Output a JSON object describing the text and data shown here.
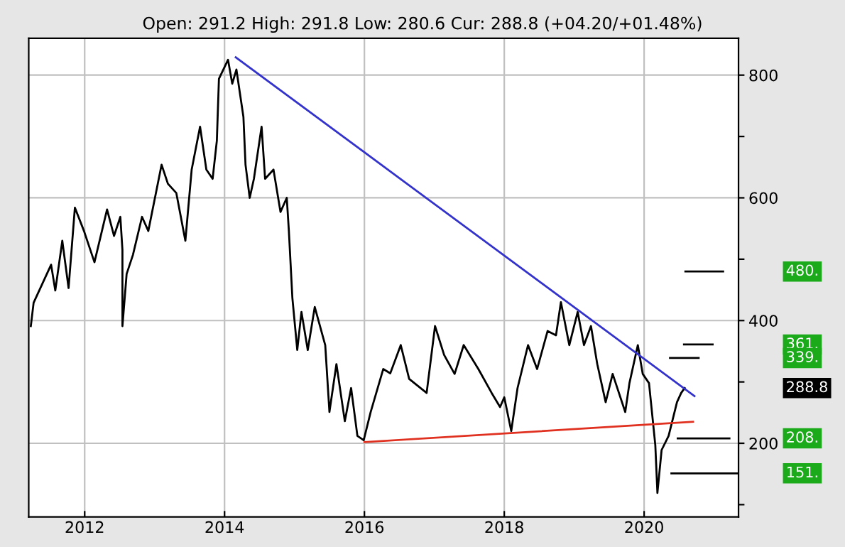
{
  "chart_data": {
    "type": "line",
    "title": "Open: 291.2 High: 291.8 Low: 280.6 Cur: 288.8 (+04.20/+01.48%)",
    "xlim": [
      2011.2,
      2021.35
    ],
    "xticks": [
      2012,
      2014,
      2016,
      2018,
      2020
    ],
    "ylim": [
      80,
      860
    ],
    "yticks": [
      {
        "value": 100,
        "label": null
      },
      200,
      {
        "value": 300,
        "label": null
      },
      400,
      {
        "value": 500,
        "label": null
      },
      600,
      {
        "value": 700,
        "label": null
      },
      800
    ],
    "grid": true,
    "marker": "none",
    "line_style": "solid",
    "series": [
      {
        "color": "#000000",
        "x": [
          2011.23,
          2011.27,
          2011.52,
          2011.58,
          2011.68,
          2011.77,
          2011.86,
          2011.99,
          2012.14,
          2012.32,
          2012.42,
          2012.51,
          2012.54,
          2012.54,
          2012.6,
          2012.69,
          2012.82,
          2012.91,
          2013.1,
          2013.19,
          2013.31,
          2013.44,
          2013.53,
          2013.65,
          2013.74,
          2013.83,
          2013.89,
          2013.92,
          2014.05,
          2014.11,
          2014.17,
          2014.27,
          2014.3,
          2014.36,
          2014.42,
          2014.53,
          2014.58,
          2014.7,
          2014.8,
          2014.89,
          2014.92,
          2014.97,
          2015.04,
          2015.1,
          2015.19,
          2015.29,
          2015.44,
          2015.5,
          2015.6,
          2015.72,
          2015.81,
          2015.9,
          2015.99,
          2016.09,
          2016.27,
          2016.37,
          2016.52,
          2016.64,
          2016.89,
          2017.01,
          2017.14,
          2017.29,
          2017.42,
          2017.63,
          2017.82,
          2017.94,
          2018.0,
          2018.1,
          2018.19,
          2018.34,
          2018.47,
          2018.62,
          2018.74,
          2018.81,
          2018.93,
          2019.05,
          2019.14,
          2019.24,
          2019.33,
          2019.45,
          2019.55,
          2019.73,
          2019.79,
          2019.91,
          2019.98,
          2020.07,
          2020.16,
          2020.19,
          2020.25,
          2020.35,
          2020.47,
          2020.53,
          2020.58
        ],
        "values": [
          391,
          429,
          491,
          449,
          530,
          453,
          584,
          546,
          495,
          581,
          538,
          569,
          515,
          391,
          476,
          507,
          569,
          546,
          654,
          623,
          608,
          530,
          646,
          716,
          646,
          631,
          693,
          794,
          825,
          786,
          809,
          732,
          654,
          600,
          631,
          716,
          631,
          646,
          577,
          600,
          546,
          437,
          352,
          414,
          352,
          422,
          360,
          251,
          329,
          236,
          290,
          212,
          205,
          251,
          321,
          314,
          360,
          305,
          282,
          391,
          344,
          313,
          360,
          321,
          282,
          259,
          275,
          220,
          290,
          360,
          321,
          383,
          376,
          430,
          360,
          414,
          360,
          391,
          329,
          267,
          313,
          251,
          298,
          360,
          313,
          298,
          197,
          119,
          189,
          212,
          267,
          282,
          290
        ]
      },
      {
        "color": "#3333cc",
        "x": [
          2014.16,
          2020.72
        ],
        "values": [
          829,
          277
        ]
      },
      {
        "color": "#e03020",
        "x": [
          2016.0,
          2020.7
        ],
        "values": [
          202,
          235
        ]
      },
      {
        "color": "#000000",
        "x": [
          2020.59,
          2021.13
        ],
        "values": [
          480,
          480
        ]
      },
      {
        "color": "#000000",
        "x": [
          2020.57,
          2020.98
        ],
        "values": [
          361,
          361
        ]
      },
      {
        "color": "#000000",
        "x": [
          2020.37,
          2020.78
        ],
        "values": [
          339,
          339
        ]
      },
      {
        "color": "#000000",
        "x": [
          2020.48,
          2021.22
        ],
        "values": [
          208,
          208
        ]
      },
      {
        "color": "#000000",
        "x": [
          2020.39,
          2021.33
        ],
        "values": [
          151,
          151
        ]
      }
    ],
    "annotations": [
      "480.",
      "361.",
      "339.",
      "288.8",
      "208.",
      "151."
    ]
  }
}
